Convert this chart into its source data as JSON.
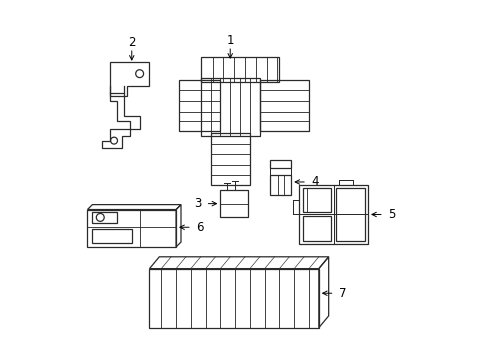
{
  "bg_color": "#ffffff",
  "line_color": "#2a2a2a",
  "label_color": "#000000",
  "figsize": [
    4.89,
    3.6
  ],
  "dpi": 100,
  "lw": 0.9
}
